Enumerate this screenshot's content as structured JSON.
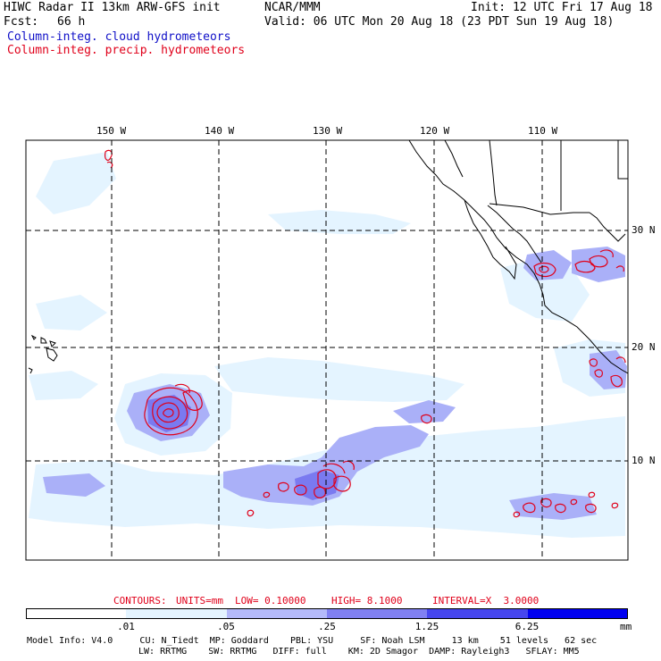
{
  "header": {
    "title_left": "HIWC Radar II 13km ARW-GFS init",
    "center_name": "NCAR/MMM",
    "init_time": "Init: 12 UTC Fri 17 Aug 18",
    "fcst_label": "Fcst:",
    "fcst_value": "66 h",
    "valid_time": "Valid: 06 UTC Mon 20 Aug 18 (23 PDT Sun 19 Aug 18)",
    "legend_cloud": "Column-integ. cloud hydrometeors",
    "legend_precip": "Column-integ. precip. hydrometeors"
  },
  "map": {
    "lon_labels": [
      "150 W",
      "140 W",
      "130 W",
      "120 W",
      "110 W"
    ],
    "lat_labels": [
      "30 N",
      "20 N",
      "10 N"
    ],
    "colors": {
      "cloud_light": "#e4f4ff",
      "cloud_mid": "#aab0f8",
      "cloud_dark": "#7070ee",
      "precip_contour": "#e0001a",
      "coastline": "#000000"
    }
  },
  "contours_info": {
    "contours": "CONTOURS:",
    "units": "UNITS=mm",
    "low": "LOW= 0.10000",
    "high": "HIGH= 8.1000",
    "interval": "INTERVAL=X  3.0000"
  },
  "colorbar": {
    "labels": [
      ".01",
      ".05",
      ".25",
      "1.25",
      "6.25"
    ],
    "unit": "mm",
    "colors": [
      "#ffffff",
      "#e4f4ff",
      "#b4bafa",
      "#8080f2",
      "#4646ee",
      "#0000f0"
    ]
  },
  "model_info": {
    "line1": "Model Info: V4.0     CU: N_Tiedt  MP: Goddard    PBL: YSU     SF: Noah LSM     13 km    51 levels   62 sec",
    "line2": "LW: RRTMG    SW: RRTMG   DIFF: full    KM: 2D Smagor  DAMP: Rayleigh3   SFLAY: MM5"
  }
}
